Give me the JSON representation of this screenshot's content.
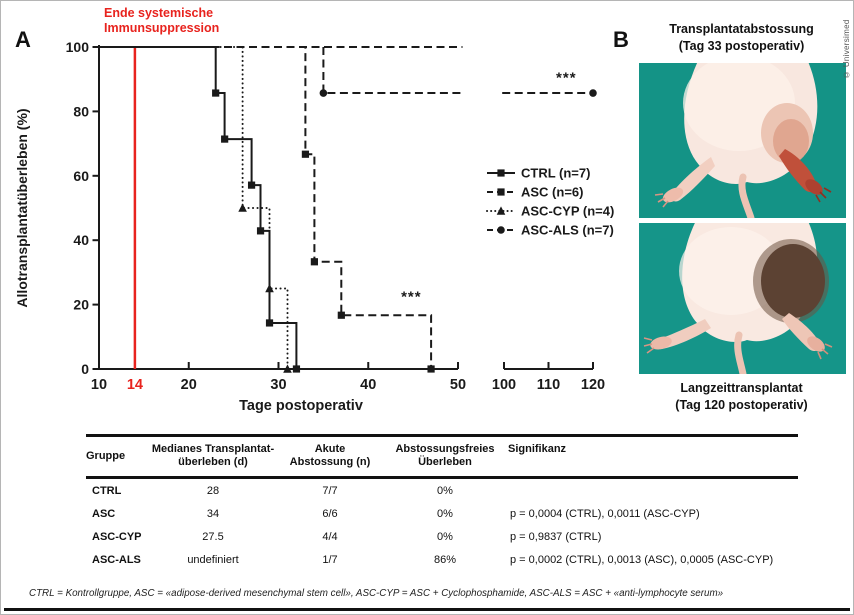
{
  "figure": {
    "panel_a_label": "A",
    "panel_b_label": "B",
    "copyright": "© Universimed"
  },
  "chart_data": {
    "type": "line",
    "subtype": "kaplan-meier-step-survival",
    "title": "",
    "xlabel": "Tage postoperativ",
    "ylabel": "Allotransplantatüberleben (%)",
    "ink_color": "#1a1a1a",
    "grid": "off",
    "legend_position": "right-middle",
    "x_axis": {
      "segments": [
        {
          "range": [
            10,
            50
          ],
          "ticks": [
            10,
            20,
            30,
            40,
            50
          ]
        },
        {
          "range": [
            100,
            120
          ],
          "ticks": [
            100,
            110,
            120
          ]
        }
      ],
      "axis_break": true
    },
    "y_axis": {
      "range": [
        0,
        100
      ],
      "ticks": [
        0,
        20,
        40,
        60,
        80,
        100
      ]
    },
    "event_marker": {
      "x": 14,
      "tick_label": "14",
      "color": "#e8231e",
      "label_lines": [
        "Ende systemische",
        "Immunsuppression"
      ]
    },
    "series": [
      {
        "name": "CTRL (n=7)",
        "marker": "square",
        "line_style": "solid",
        "segments": [
          [
            [
              10,
              100
            ],
            [
              23,
              100
            ],
            [
              23,
              85.7
            ],
            [
              24,
              85.7
            ],
            [
              24,
              71.4
            ],
            [
              27,
              71.4
            ],
            [
              27,
              57.1
            ],
            [
              28,
              57.1
            ],
            [
              28,
              42.9
            ],
            [
              29,
              42.9
            ],
            [
              29,
              14.3
            ],
            [
              32,
              14.3
            ],
            [
              32,
              0
            ]
          ]
        ],
        "markers": [
          [
            23,
            85.7
          ],
          [
            24,
            71.4
          ],
          [
            27,
            57.1
          ],
          [
            28,
            42.9
          ],
          [
            29,
            14.3
          ],
          [
            32,
            0
          ]
        ]
      },
      {
        "name": "ASC (n=6)",
        "marker": "square",
        "line_style": "dashed",
        "segments": [
          [
            [
              10,
              100
            ],
            [
              33,
              100
            ],
            [
              33,
              66.7
            ],
            [
              34,
              66.7
            ],
            [
              34,
              33.3
            ],
            [
              37,
              33.3
            ],
            [
              37,
              16.7
            ],
            [
              47,
              16.7
            ],
            [
              47,
              0
            ]
          ]
        ],
        "markers": [
          [
            33,
            66.7
          ],
          [
            34,
            33.3
          ],
          [
            37,
            16.7
          ],
          [
            47,
            0
          ]
        ]
      },
      {
        "name": "ASC-CYP (n=4)",
        "marker": "triangle",
        "line_style": "dotted",
        "segments": [
          [
            [
              10,
              100
            ],
            [
              26,
              100
            ],
            [
              26,
              50
            ],
            [
              29,
              50
            ],
            [
              29,
              25
            ],
            [
              31,
              25
            ],
            [
              31,
              0
            ]
          ]
        ],
        "markers": [
          [
            26,
            50
          ],
          [
            29,
            25
          ],
          [
            31,
            0
          ]
        ]
      },
      {
        "name": "ASC-ALS (n=7)",
        "marker": "circle",
        "line_style": "dashed",
        "segments": [
          [
            [
              10,
              100
            ],
            [
              50.5,
              100
            ]
          ],
          [
            [
              35,
              100
            ],
            [
              35,
              85.7
            ],
            [
              50.5,
              85.7
            ]
          ],
          [
            [
              99.6,
              85.7
            ],
            [
              120,
              85.7
            ]
          ]
        ],
        "markers": [
          [
            35,
            85.7
          ],
          [
            120,
            85.7
          ]
        ]
      }
    ],
    "annotations": [
      {
        "text": "***",
        "x": 44.8,
        "y": 21
      },
      {
        "text": "***",
        "x": 114,
        "y": 89
      }
    ]
  },
  "panel_b": {
    "top_title_line1": "Transplantatabstossung",
    "top_title_line2": "(Tag 33 postoperativ)",
    "bottom_caption_line1": "Langzeittransplantat",
    "bottom_caption_line2": "(Tag 120 postoperativ)",
    "photo_background": "#17998c"
  },
  "table": {
    "headers": {
      "col1": "Gruppe",
      "col2_line1": "Medianes Transplantat-",
      "col2_line2": "überleben (d)",
      "col3_line1": "Akute",
      "col3_line2": "Abstossung (n)",
      "col4_line1": "Abstossungsfreies",
      "col4_line2": "Überleben",
      "col5": "Signifikanz"
    },
    "rows": [
      {
        "group": "CTRL",
        "median": "28",
        "acute": "7/7",
        "free": "0%",
        "signif": ""
      },
      {
        "group": "ASC",
        "median": "34",
        "acute": "6/6",
        "free": "0%",
        "signif": "p = 0,0004 (CTRL), 0,0011 (ASC-CYP)"
      },
      {
        "group": "ASC-CYP",
        "median": "27.5",
        "acute": "4/4",
        "free": "0%",
        "signif": "p = 0,9837 (CTRL)"
      },
      {
        "group": "ASC-ALS",
        "median": "undefiniert",
        "acute": "1/7",
        "free": "86%",
        "signif": "p = 0,0002 (CTRL), 0,0013 (ASC), 0,0005 (ASC-CYP)"
      }
    ],
    "footnote": "CTRL = Kontrollgruppe, ASC = «adipose-derived mesenchymal stem cell», ASC-CYP = ASC + Cyclophosphamide, ASC-ALS = ASC + «anti-lymphocyte serum»"
  }
}
